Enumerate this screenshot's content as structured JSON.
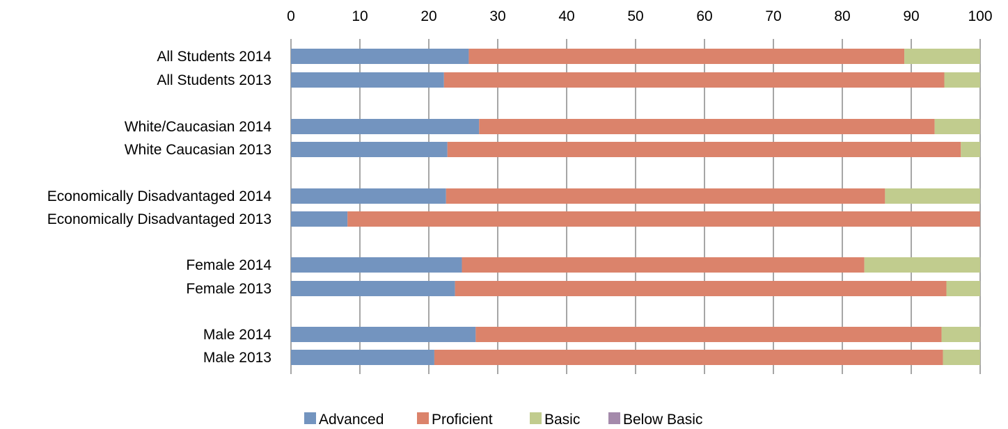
{
  "chart_data": {
    "type": "bar",
    "orientation": "horizontal",
    "stacked": true,
    "categories": [
      "All Students 2014",
      "All Students 2013",
      "White/Caucasian 2014",
      "White Caucasian 2013",
      "Economically Disadvantaged  2014",
      "Economically Disadvantaged  2013",
      "Female 2014",
      "Female 2013",
      "Male 2014",
      "Male 2013"
    ],
    "series": [
      {
        "name": "Advanced",
        "color": "#7394BF",
        "values": [
          25.8,
          22.2,
          27.3,
          22.7,
          22.5,
          8.2,
          24.8,
          23.8,
          26.8,
          20.8
        ]
      },
      {
        "name": "Proficient",
        "color": "#DB836B",
        "values": [
          63.2,
          72.6,
          66.1,
          74.5,
          63.7,
          91.8,
          58.4,
          71.3,
          67.6,
          73.8
        ]
      },
      {
        "name": "Basic",
        "color": "#C1CC8E",
        "values": [
          11.0,
          5.2,
          6.6,
          2.8,
          13.8,
          0.0,
          16.8,
          4.9,
          5.6,
          5.4
        ]
      },
      {
        "name": "Below Basic",
        "color": "#A48AAB",
        "values": [
          0,
          0,
          0,
          0,
          0,
          0,
          0,
          0,
          0,
          0
        ]
      }
    ],
    "xlim": [
      0,
      100
    ],
    "xticks": [
      "0",
      "10",
      "20",
      "30",
      "40",
      "50",
      "60",
      "70",
      "80",
      "90",
      "100"
    ],
    "x_axis_position": "top",
    "grid": "vertical",
    "grid_color": "#A6A6A6",
    "legend_position": "bottom",
    "title": "",
    "xlabel": "",
    "ylabel": ""
  }
}
